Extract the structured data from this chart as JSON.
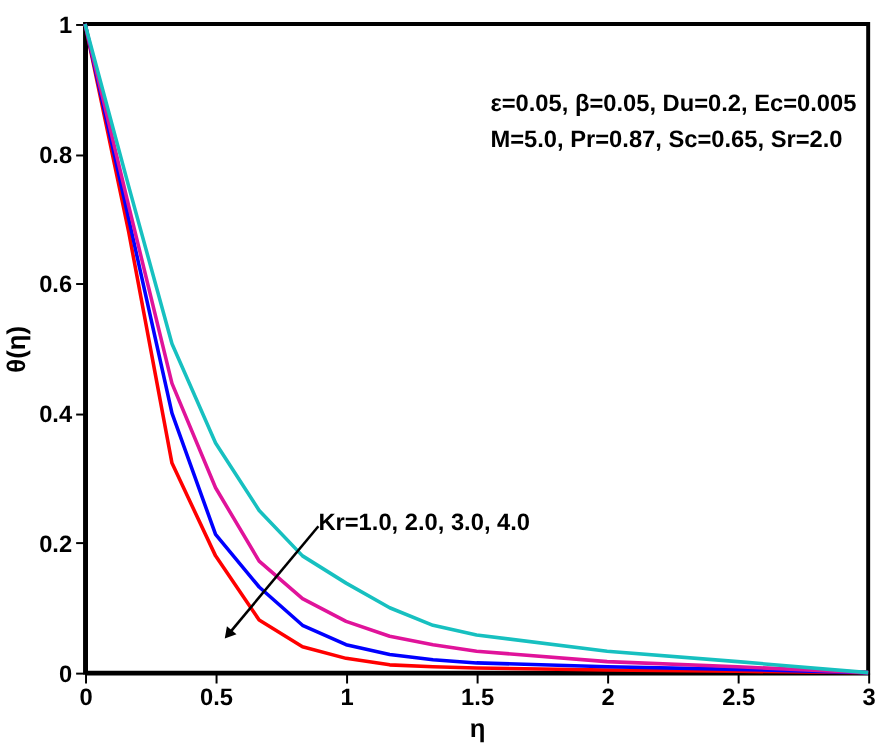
{
  "chart_data": {
    "type": "line",
    "xlabel": "η",
    "ylabel": "θ(η)",
    "x": [
      0,
      0.167,
      0.333,
      0.5,
      0.667,
      0.833,
      1.0,
      1.167,
      1.333,
      1.5,
      2.0,
      2.5,
      3.0
    ],
    "series": [
      {
        "color": "#ff0000",
        "values": [
          1,
          0.68,
          0.323,
          0.18,
          0.081,
          0.04,
          0.022,
          0.012,
          0.009,
          0.007,
          0.004,
          0.002,
          0
        ]
      },
      {
        "color": "#0000ff",
        "values": [
          1,
          0.7,
          0.4,
          0.213,
          0.132,
          0.073,
          0.043,
          0.028,
          0.02,
          0.015,
          0.009,
          0.005,
          0
        ]
      },
      {
        "color": "#e0139a",
        "values": [
          1,
          0.72,
          0.446,
          0.285,
          0.172,
          0.114,
          0.079,
          0.056,
          0.043,
          0.033,
          0.017,
          0.009,
          0
        ]
      },
      {
        "color": "#17c0c0",
        "values": [
          1,
          0.75,
          0.507,
          0.354,
          0.25,
          0.18,
          0.138,
          0.1,
          0.073,
          0.058,
          0.033,
          0.017,
          0
        ]
      }
    ],
    "xlim": [
      0,
      3
    ],
    "ylim": [
      0,
      1
    ],
    "xticks": [
      0,
      0.5,
      1,
      1.5,
      2,
      2.5,
      3
    ],
    "yticks": [
      0,
      0.2,
      0.4,
      0.6,
      0.8,
      1
    ],
    "grid": false,
    "legend": false,
    "line_style": "solid",
    "marker": "none",
    "annotations": [
      "ε=0.05, β=0.05, Du=0.2, Ec=0.005",
      "M=5.0, Pr=0.87, Sc=0.65, Sr=2.0",
      "Kr=1.0, 2.0, 3.0, 4.0"
    ]
  }
}
